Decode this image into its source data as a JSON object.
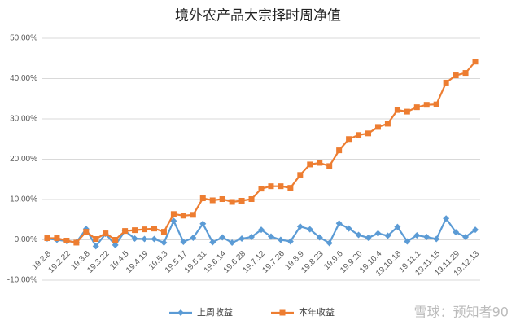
{
  "chart_data": {
    "type": "line",
    "title": "境外农产品大宗择时周净值",
    "watermark": "雪球：预知者90",
    "categories": [
      "19.2.8",
      null,
      "19.2.22",
      null,
      "19.3.8",
      null,
      "19.3.22",
      null,
      "19.4.5",
      null,
      "19.4.19",
      null,
      "19.5.3",
      null,
      "19.5.17",
      null,
      "19.5.31",
      null,
      "19.6.14",
      null,
      "19.6.28",
      null,
      "19.7.12",
      null,
      "19.7.26",
      null,
      "19.8.9",
      null,
      "19.8.23",
      null,
      "19.9.6",
      null,
      "19.9.20",
      null,
      "19.10.4",
      null,
      "19.10.18",
      null,
      "19.11.1",
      null,
      "19.11.15",
      null,
      "19.11.29",
      null,
      "19.12.13"
    ],
    "series": [
      {
        "name": "上周收益",
        "color": "#5b9bd5",
        "marker": "diamond",
        "values": [
          0.3,
          0.0,
          -0.3,
          -0.6,
          2.7,
          -1.6,
          1.5,
          -1.3,
          2.2,
          0.3,
          0.2,
          0.2,
          -0.7,
          4.7,
          -0.5,
          0.5,
          4.0,
          -0.6,
          0.6,
          -0.7,
          0.3,
          0.7,
          2.5,
          0.8,
          0.0,
          -0.4,
          3.3,
          2.6,
          0.6,
          -0.8,
          4.1,
          2.8,
          1.2,
          0.5,
          1.6,
          1.0,
          3.2,
          -0.4,
          1.1,
          0.7,
          0.2,
          5.3,
          1.9,
          0.7,
          2.5
        ]
      },
      {
        "name": "本年收益",
        "color": "#ed7d31",
        "marker": "square",
        "values": [
          0.4,
          0.4,
          -0.2,
          -0.7,
          2.0,
          0.2,
          1.6,
          0.0,
          2.2,
          2.4,
          2.6,
          2.8,
          2.0,
          6.4,
          6.0,
          6.2,
          10.3,
          9.8,
          10.1,
          9.4,
          9.7,
          10.1,
          12.7,
          13.3,
          13.3,
          12.9,
          16.1,
          18.7,
          19.1,
          18.3,
          22.2,
          25.0,
          26.0,
          26.4,
          28.0,
          28.8,
          32.2,
          31.8,
          32.9,
          33.5,
          33.6,
          39.0,
          40.8,
          41.4,
          44.2
        ]
      }
    ],
    "ylim": [
      -10,
      50
    ],
    "yticks": [
      {
        "value": -10,
        "label": "-10.00%"
      },
      {
        "value": 0,
        "label": "0.00%"
      },
      {
        "value": 10,
        "label": "10.00%"
      },
      {
        "value": 20,
        "label": "20.00%"
      },
      {
        "value": 30,
        "label": "30.00%"
      },
      {
        "value": 40,
        "label": "40.00%"
      },
      {
        "value": 50,
        "label": "50.00%"
      }
    ],
    "grid": true,
    "legend": "bottom"
  }
}
